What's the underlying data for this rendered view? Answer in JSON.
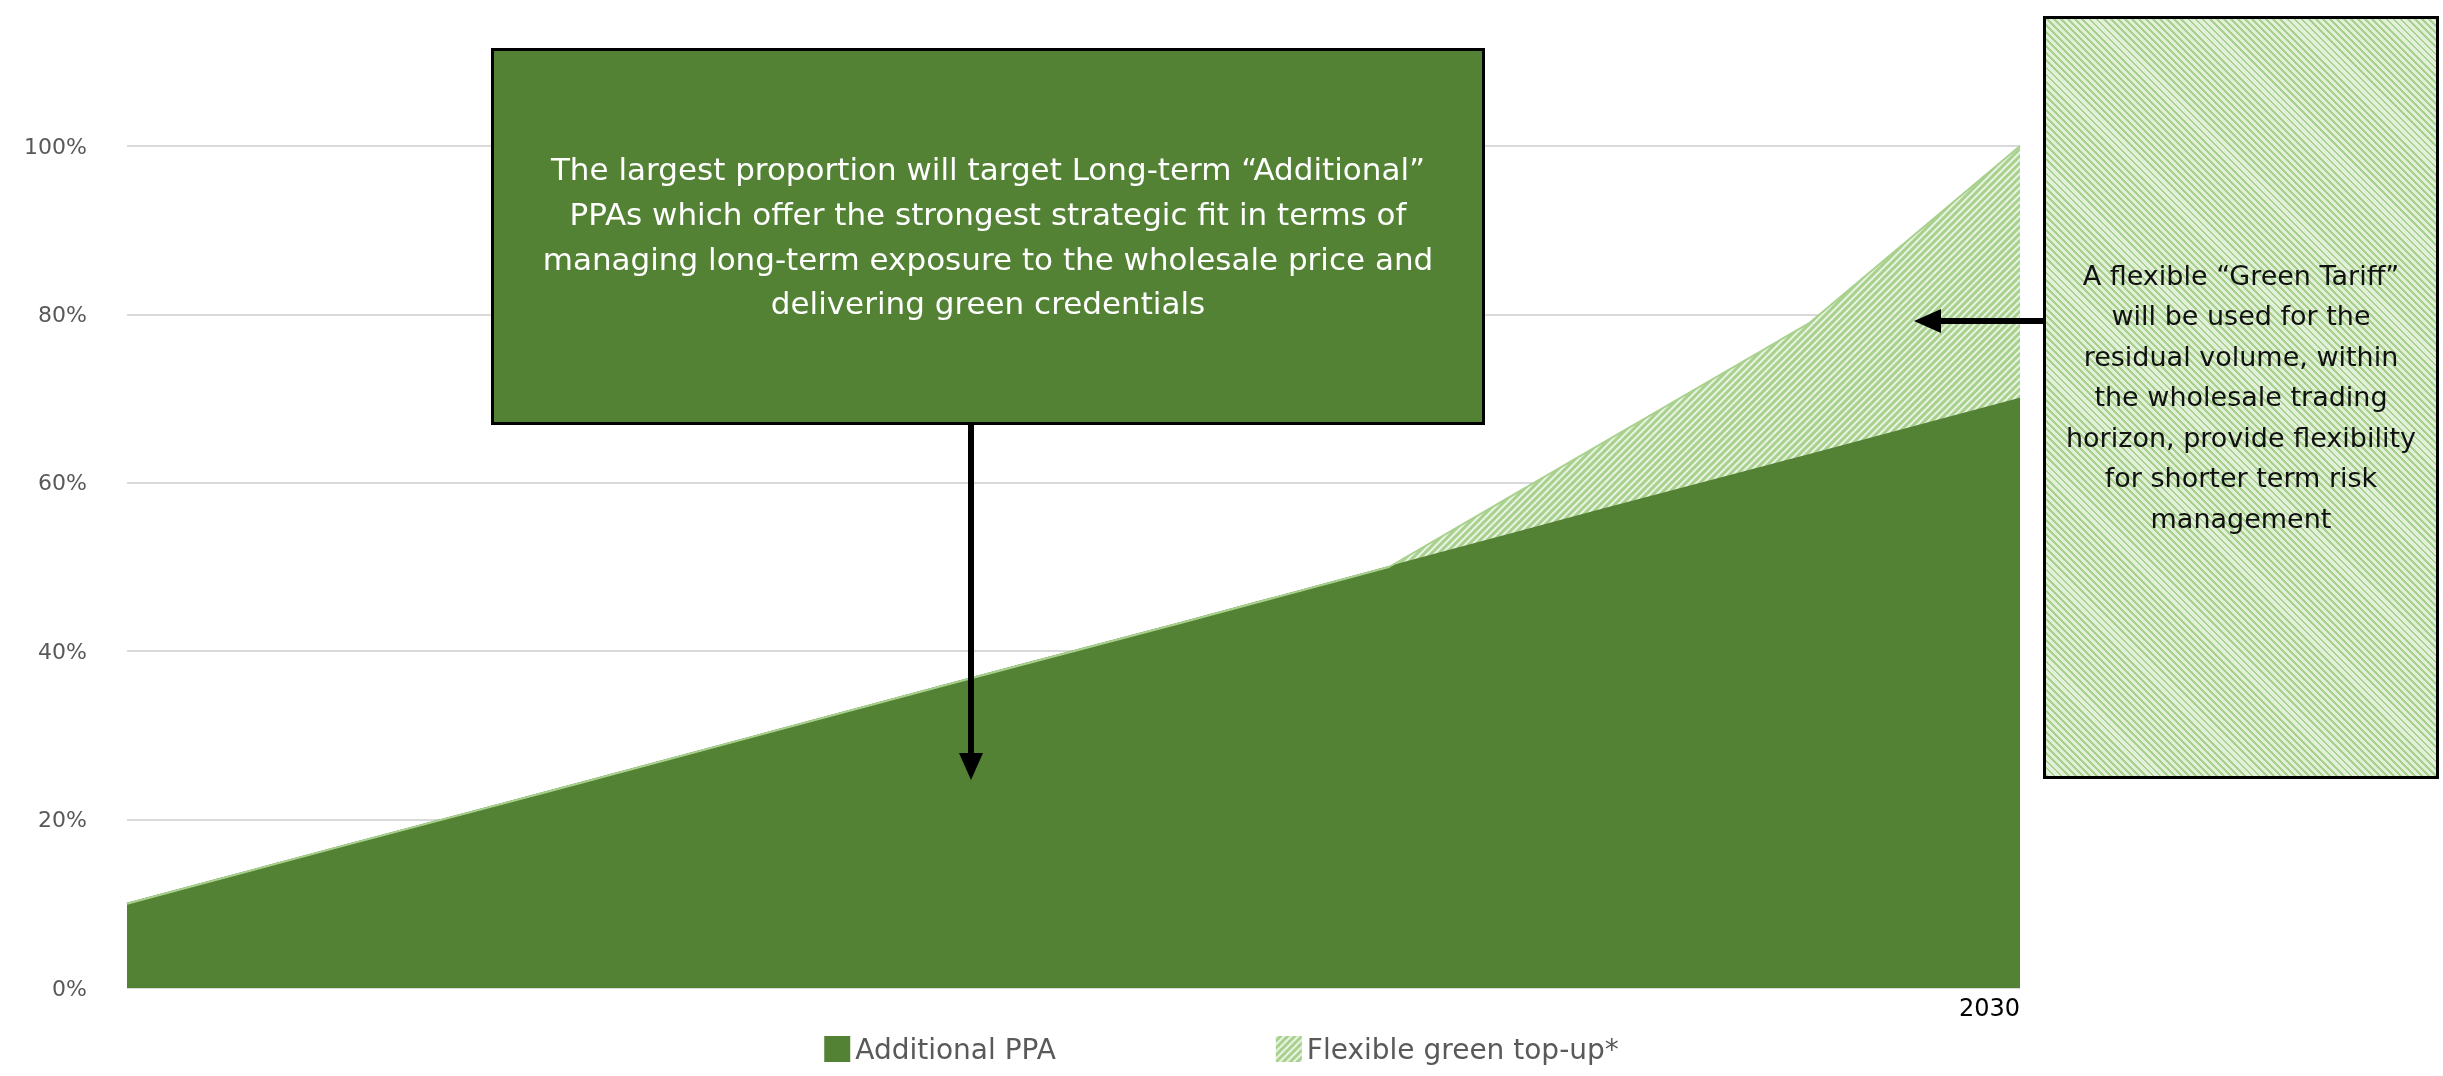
{
  "chart_data": {
    "type": "area",
    "stacked": true,
    "categories": [
      null,
      null,
      null,
      null,
      null,
      null,
      null,
      null,
      null,
      "2030"
    ],
    "series": [
      {
        "name": "Additional PPA",
        "color": "#548235",
        "values": [
          10,
          16.7,
          23.3,
          30,
          36.7,
          43.3,
          50,
          56.7,
          63.3,
          70
        ]
      },
      {
        "name": "Flexible green top-up*",
        "color": "#a9d18e",
        "values": [
          0,
          0,
          0,
          0,
          0,
          0,
          0,
          7.8,
          15.7,
          30
        ]
      }
    ],
    "ylim": [
      0,
      100
    ],
    "yticks": [
      {
        "value": 0,
        "label": "0%"
      },
      {
        "value": 20,
        "label": "20%"
      },
      {
        "value": 40,
        "label": "40%"
      },
      {
        "value": 60,
        "label": "60%"
      },
      {
        "value": 80,
        "label": "80%"
      },
      {
        "value": 100,
        "label": "100%"
      }
    ],
    "grid": "y",
    "legend": "bottom",
    "marker": "none",
    "annotations": [
      "The largest proportion will target Long-term “Additional” PPAs which offer the strongest strategic fit in terms of managing long-term exposure to the wholesale price and delivering green credentials",
      "A flexible “Green Tariff” will be used for the residual volume, within the wholesale trading horizon, provide flexibility for shorter term risk management"
    ]
  }
}
